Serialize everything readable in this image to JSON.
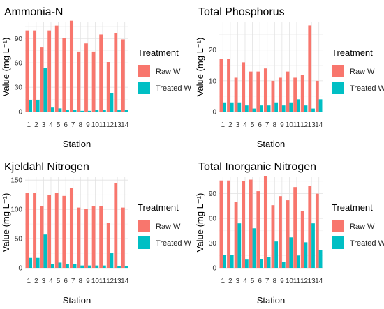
{
  "chart_data": [
    {
      "type": "bar",
      "title": "Ammonia-N",
      "xlabel": "Station",
      "ylabel": "Value (mg L⁻¹)",
      "ylim": [
        0,
        110
      ],
      "yticks": [
        0,
        30,
        60,
        90
      ],
      "categories": [
        "1",
        "2",
        "3",
        "4",
        "5",
        "6",
        "7",
        "8",
        "9",
        "10",
        "11",
        "12",
        "13",
        "14"
      ],
      "series": [
        {
          "name": "Raw W",
          "values": [
            100,
            100,
            79,
            100,
            106,
            91,
            112,
            74,
            84,
            74,
            95,
            61,
            97,
            89
          ]
        },
        {
          "name": "Treated W",
          "values": [
            14,
            14,
            54,
            5,
            4,
            2,
            2,
            1,
            1,
            2,
            2,
            23,
            2,
            2
          ]
        }
      ],
      "legend": {
        "title": "Treatment",
        "position": "right"
      }
    },
    {
      "type": "bar",
      "title": "Total Phosphorus",
      "xlabel": "Station",
      "ylabel": "Value (mg L⁻¹)",
      "ylim": [
        0,
        29
      ],
      "yticks": [
        0,
        10,
        20
      ],
      "categories": [
        "1",
        "2",
        "3",
        "4",
        "5",
        "6",
        "7",
        "8",
        "9",
        "10",
        "11",
        "12",
        "13",
        "14"
      ],
      "series": [
        {
          "name": "Raw W",
          "values": [
            17,
            17,
            11,
            16,
            13,
            13,
            14,
            10,
            11,
            13,
            11,
            12,
            28,
            10
          ]
        },
        {
          "name": "Treated W",
          "values": [
            3,
            3,
            3,
            2,
            1,
            2,
            2,
            3,
            2,
            3,
            4,
            2,
            1,
            4
          ]
        }
      ],
      "legend": {
        "title": "Treatment",
        "position": "right"
      }
    },
    {
      "type": "bar",
      "title": "Kjeldahl Nitrogen",
      "xlabel": "Station",
      "ylabel": "Value (mg L⁻¹)",
      "ylim": [
        0,
        155
      ],
      "yticks": [
        0,
        50,
        100,
        150
      ],
      "categories": [
        "1",
        "2",
        "3",
        "4",
        "5",
        "6",
        "7",
        "8",
        "9",
        "10",
        "11",
        "12",
        "13",
        "14"
      ],
      "series": [
        {
          "name": "Raw W",
          "values": [
            128,
            128,
            105,
            125,
            128,
            123,
            136,
            103,
            101,
            105,
            105,
            77,
            145,
            103
          ]
        },
        {
          "name": "Treated W",
          "values": [
            17,
            17,
            57,
            7,
            9,
            6,
            7,
            4,
            4,
            4,
            4,
            25,
            3,
            3
          ]
        }
      ],
      "legend": {
        "title": "Treatment",
        "position": "right"
      }
    },
    {
      "type": "bar",
      "title": "Total Inorganic Nitrogen",
      "xlabel": "Station",
      "ylabel": "Value (mg L⁻¹)",
      "ylim": [
        0,
        110
      ],
      "yticks": [
        0,
        30,
        60,
        90
      ],
      "categories": [
        "1",
        "2",
        "3",
        "4",
        "5",
        "6",
        "7",
        "8",
        "9",
        "10",
        "11",
        "12",
        "13",
        "14"
      ],
      "series": [
        {
          "name": "Raw W",
          "values": [
            106,
            106,
            80,
            105,
            107,
            93,
            111,
            76,
            87,
            82,
            98,
            69,
            99,
            90
          ]
        },
        {
          "name": "Treated W",
          "values": [
            16,
            16,
            54,
            10,
            48,
            11,
            13,
            32,
            7,
            37,
            15,
            31,
            54,
            22
          ]
        }
      ],
      "legend": {
        "title": "Treatment",
        "position": "right"
      }
    }
  ],
  "colors": {
    "Raw W": "#F8766D",
    "Treated W": "#00BFC4"
  }
}
